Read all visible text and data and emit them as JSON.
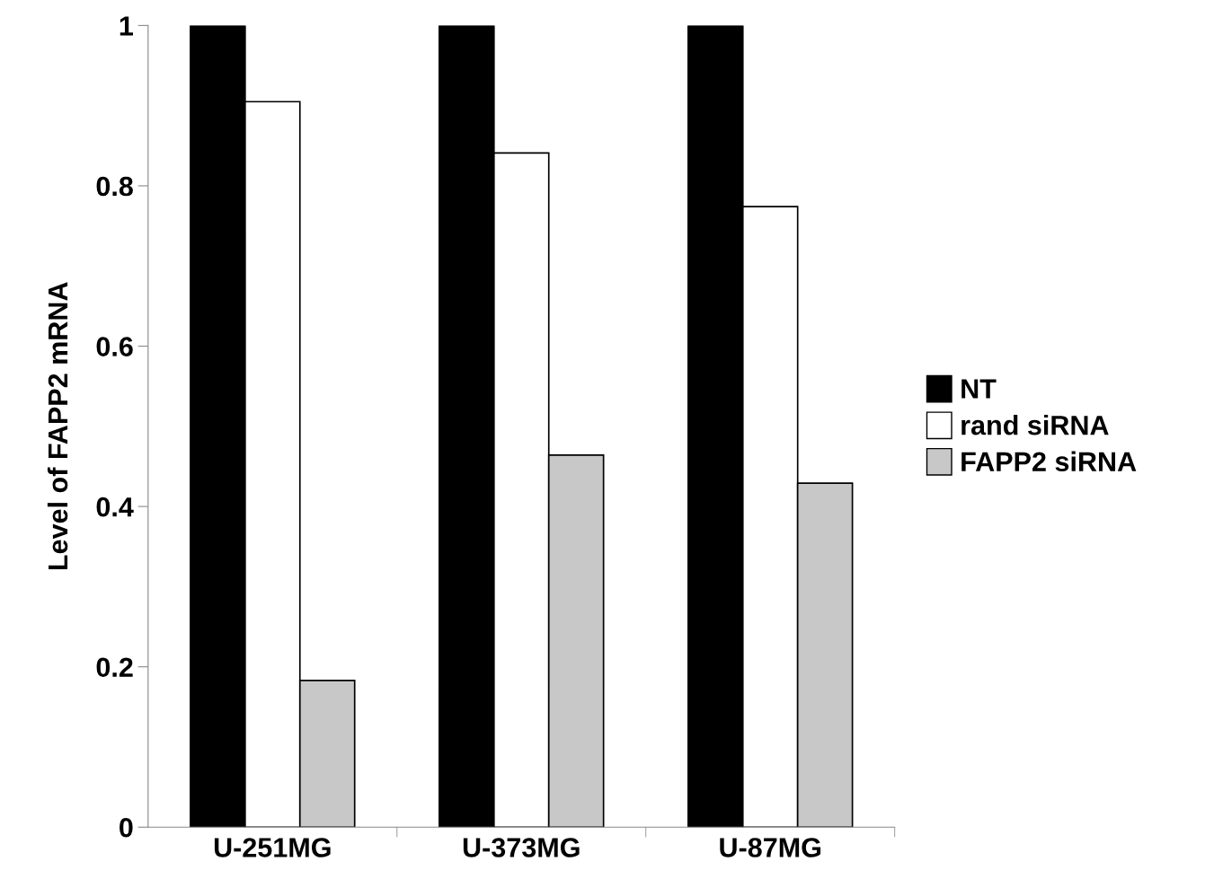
{
  "chart_data": {
    "type": "bar",
    "ylabel": "Level of FAPP2 mRNA",
    "categories": [
      "U-251MG",
      "U-373MG",
      "U-87MG"
    ],
    "series": [
      {
        "name": "NT",
        "color": "#000000",
        "values": [
          1,
          1,
          1
        ]
      },
      {
        "name": "rand siRNA",
        "color": "#ffffff",
        "values": [
          0.905,
          0.841,
          0.774
        ]
      },
      {
        "name": "FAPP2 siRNA",
        "color": "#c8c8c8",
        "values": [
          0.183,
          0.464,
          0.429
        ]
      }
    ],
    "ylim": [
      0,
      1
    ],
    "yticks": [
      0,
      0.2,
      0.4,
      0.6,
      0.8,
      1
    ],
    "grid": false,
    "legend": "right"
  }
}
